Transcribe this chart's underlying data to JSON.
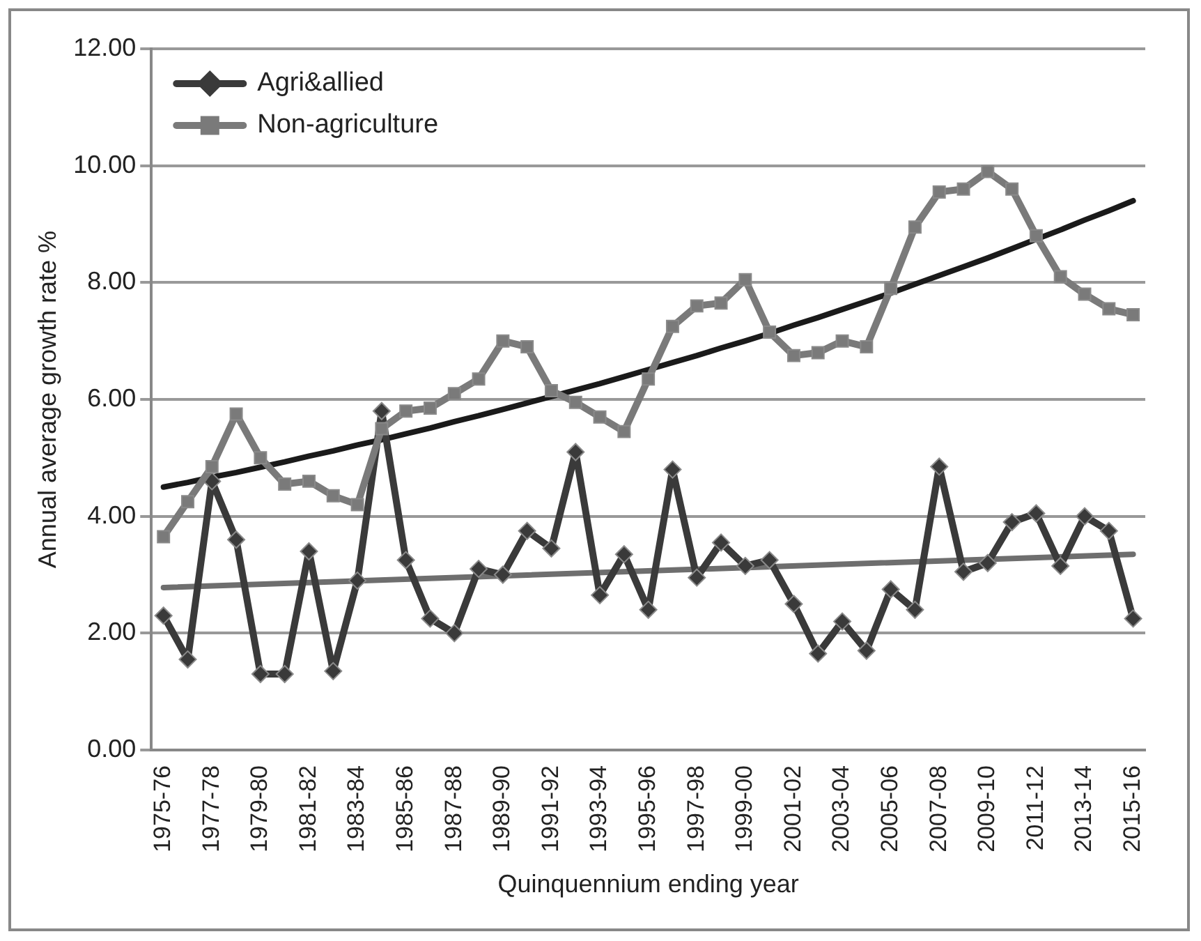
{
  "chart_data": {
    "type": "line",
    "xlabel": "Quinquennium ending year",
    "ylabel": "Annual average growth rate %",
    "categories": [
      "1975-76",
      null,
      "1977-78",
      null,
      "1979-80",
      null,
      "1981-82",
      null,
      "1983-84",
      null,
      "1985-86",
      null,
      "1987-88",
      null,
      "1989-90",
      null,
      "1991-92",
      null,
      "1993-94",
      null,
      "1995-96",
      null,
      "1997-98",
      null,
      "1999-00",
      null,
      "2001-02",
      null,
      "2003-04",
      null,
      "2005-06",
      null,
      "2007-08",
      null,
      "2009-10",
      null,
      "2011-12",
      null,
      "2013-14",
      null,
      "2015-16"
    ],
    "series": [
      {
        "name": "Agri&allied",
        "color": "#3a3a3a",
        "marker": "diamond",
        "values": [
          2.3,
          1.55,
          4.6,
          3.6,
          1.3,
          1.3,
          3.4,
          1.35,
          2.9,
          5.8,
          3.25,
          2.25,
          2.0,
          3.1,
          3.0,
          3.75,
          3.45,
          5.1,
          2.65,
          3.35,
          2.4,
          4.8,
          2.95,
          3.55,
          3.15,
          3.25,
          2.5,
          1.65,
          2.2,
          1.7,
          2.75,
          2.4,
          4.85,
          3.05,
          3.2,
          3.9,
          4.05,
          3.15,
          4.0,
          3.75,
          2.25
        ]
      },
      {
        "name": "Non-agriculture",
        "color": "#7a7a7a",
        "marker": "square",
        "values": [
          3.65,
          4.25,
          4.85,
          5.75,
          5.0,
          4.55,
          4.6,
          4.35,
          4.2,
          5.5,
          5.8,
          5.85,
          6.1,
          6.35,
          7.0,
          6.9,
          6.15,
          5.95,
          5.7,
          5.45,
          6.35,
          7.25,
          7.6,
          7.65,
          8.05,
          7.15,
          6.75,
          6.8,
          7.0,
          6.9,
          7.9,
          8.95,
          9.55,
          9.6,
          9.9,
          9.6,
          8.8,
          8.1,
          7.8,
          7.55,
          7.45
        ]
      },
      {
        "type": "line",
        "color": "#1a1a1a",
        "marker": "none",
        "values": [
          4.5,
          4.58,
          4.67,
          4.75,
          4.84,
          4.93,
          5.03,
          5.12,
          5.22,
          5.31,
          5.41,
          5.51,
          5.62,
          5.72,
          5.83,
          5.94,
          6.05,
          6.16,
          6.27,
          6.39,
          6.51,
          6.63,
          6.75,
          6.88,
          7.0,
          7.13,
          7.27,
          7.4,
          7.54,
          7.68,
          7.82,
          7.97,
          8.12,
          8.27,
          8.42,
          8.58,
          8.74,
          8.9,
          9.07,
          9.23,
          9.4
        ]
      },
      {
        "type": "line",
        "color": "#6e6e6e",
        "marker": "none",
        "x": [
          "1975-76",
          "2015-16"
        ],
        "values": [
          2.78,
          3.35
        ]
      }
    ],
    "ylim": [
      0,
      12
    ],
    "yticks": [
      {
        "value": 0,
        "label": "0.00"
      },
      {
        "value": 2,
        "label": "2.00"
      },
      {
        "value": 4,
        "label": "4.00"
      },
      {
        "value": 6,
        "label": "6.00"
      },
      {
        "value": 8,
        "label": "8.00"
      },
      {
        "value": 10,
        "label": "10.00"
      },
      {
        "value": 12,
        "label": "12.00"
      }
    ],
    "grid": "y",
    "legend": "top left",
    "line_style": "solid"
  }
}
